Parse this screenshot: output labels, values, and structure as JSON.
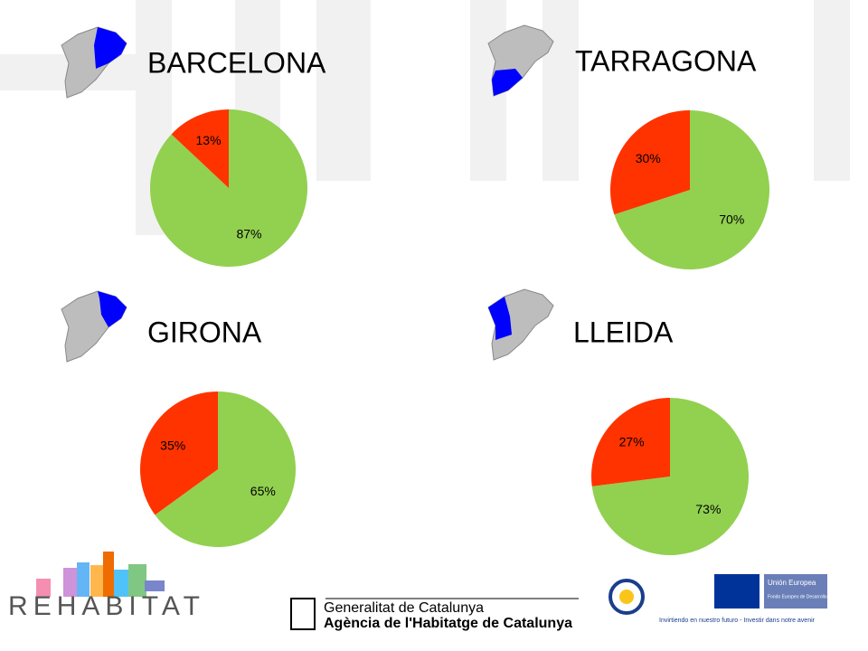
{
  "chart_data": [
    {
      "type": "pie",
      "title": "BARCELONA",
      "values": [
        87,
        13
      ],
      "value_labels": [
        "87%",
        "13%"
      ],
      "colors": [
        "#92d050",
        "#ff3300"
      ]
    },
    {
      "type": "pie",
      "title": "TARRAGONA",
      "values": [
        70,
        30
      ],
      "value_labels": [
        "70%",
        "30%"
      ],
      "colors": [
        "#92d050",
        "#ff3300"
      ]
    },
    {
      "type": "pie",
      "title": "GIRONA",
      "values": [
        65,
        35
      ],
      "value_labels": [
        "65%",
        "35%"
      ],
      "colors": [
        "#92d050",
        "#ff3300"
      ]
    },
    {
      "type": "pie",
      "title": "LLEIDA",
      "values": [
        73,
        27
      ],
      "value_labels": [
        "73%",
        "27%"
      ],
      "colors": [
        "#92d050",
        "#ff3300"
      ]
    }
  ],
  "footer": {
    "rehabitat": "REHABITAT",
    "generalitat": "Generalitat de Catalunya",
    "agencia": "Agència de l'Habitatge de Catalunya",
    "eu": "Unión Europea",
    "fund": "Fondo Europeo de Desarrollo Regional",
    "motto": "Invirtiendo en nuestro futuro - Investir dans notre avenir"
  }
}
